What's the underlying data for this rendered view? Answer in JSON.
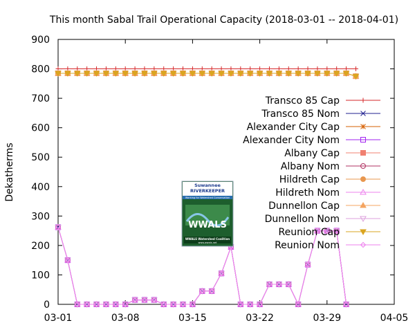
{
  "chart_data": {
    "type": "line",
    "title": "This month Sabal Trail Operational Capacity (2018-03-01 -- 2018-04-01)",
    "xlabel": "",
    "ylabel": "Dekatherms",
    "xlim": [
      "2018-03-01",
      "2018-04-05"
    ],
    "ylim": [
      0,
      900
    ],
    "x_ticks": [
      "03-01",
      "03-08",
      "03-15",
      "03-22",
      "03-29",
      "04-05"
    ],
    "y_ticks": [
      0,
      100,
      200,
      300,
      400,
      500,
      600,
      700,
      800,
      900
    ],
    "grid": false,
    "legend_position": "right",
    "x": [
      "2018-03-01",
      "2018-03-02",
      "2018-03-03",
      "2018-03-04",
      "2018-03-05",
      "2018-03-06",
      "2018-03-07",
      "2018-03-08",
      "2018-03-09",
      "2018-03-10",
      "2018-03-11",
      "2018-03-12",
      "2018-03-13",
      "2018-03-14",
      "2018-03-15",
      "2018-03-16",
      "2018-03-17",
      "2018-03-18",
      "2018-03-19",
      "2018-03-20",
      "2018-03-21",
      "2018-03-22",
      "2018-03-23",
      "2018-03-24",
      "2018-03-25",
      "2018-03-26",
      "2018-03-27",
      "2018-03-28",
      "2018-03-29",
      "2018-03-30",
      "2018-03-31",
      "2018-04-01"
    ],
    "series": [
      {
        "name": "Transco 85 Cap",
        "color": "#d62728",
        "marker": "plus",
        "values": [
          800,
          800,
          800,
          800,
          800,
          800,
          800,
          800,
          800,
          800,
          800,
          800,
          800,
          800,
          800,
          800,
          800,
          800,
          800,
          800,
          800,
          800,
          800,
          800,
          800,
          800,
          800,
          800,
          800,
          800,
          800,
          800
        ]
      },
      {
        "name": "Transco 85 Nom",
        "color": "#1f1f8f",
        "marker": "x",
        "values": [
          262,
          150,
          0,
          0,
          0,
          0,
          0,
          0,
          15,
          15,
          15,
          0,
          0,
          0,
          0,
          45,
          45,
          105,
          195,
          0,
          0,
          0,
          68,
          68,
          68,
          0,
          135,
          250,
          250,
          250,
          0,
          null
        ]
      },
      {
        "name": "Alexander City Cap",
        "color": "#d65f00",
        "marker": "star",
        "values": [
          785,
          785,
          785,
          785,
          785,
          785,
          785,
          785,
          785,
          785,
          785,
          785,
          785,
          785,
          785,
          785,
          785,
          785,
          785,
          785,
          785,
          785,
          785,
          785,
          785,
          785,
          785,
          785,
          785,
          785,
          785,
          775
        ]
      },
      {
        "name": "Alexander City Nom",
        "color": "#a020f0",
        "marker": "square-open",
        "values": [
          262,
          150,
          0,
          0,
          0,
          0,
          0,
          0,
          15,
          15,
          15,
          0,
          0,
          0,
          0,
          45,
          45,
          105,
          195,
          0,
          0,
          0,
          68,
          68,
          68,
          0,
          135,
          250,
          250,
          250,
          0,
          null
        ]
      },
      {
        "name": "Albany Cap",
        "color": "#f08070",
        "marker": "square",
        "values": [
          785,
          785,
          785,
          785,
          785,
          785,
          785,
          785,
          785,
          785,
          785,
          785,
          785,
          785,
          785,
          785,
          785,
          785,
          785,
          785,
          785,
          785,
          785,
          785,
          785,
          785,
          785,
          785,
          785,
          785,
          785,
          775
        ]
      },
      {
        "name": "Albany Nom",
        "color": "#b03060",
        "marker": "circle-open",
        "values": [
          262,
          150,
          0,
          0,
          0,
          0,
          0,
          0,
          15,
          15,
          15,
          0,
          0,
          0,
          0,
          45,
          45,
          105,
          195,
          0,
          0,
          0,
          68,
          68,
          68,
          0,
          135,
          250,
          250,
          250,
          0,
          null
        ]
      },
      {
        "name": "Hildreth Cap",
        "color": "#e8974e",
        "marker": "circle",
        "values": [
          785,
          785,
          785,
          785,
          785,
          785,
          785,
          785,
          785,
          785,
          785,
          785,
          785,
          785,
          785,
          785,
          785,
          785,
          785,
          785,
          785,
          785,
          785,
          785,
          785,
          785,
          785,
          785,
          785,
          785,
          785,
          775
        ]
      },
      {
        "name": "Hildreth Nom",
        "color": "#ee82ee",
        "marker": "triangle-open",
        "values": [
          262,
          150,
          0,
          0,
          0,
          0,
          0,
          0,
          15,
          15,
          15,
          0,
          0,
          0,
          0,
          45,
          45,
          105,
          195,
          0,
          0,
          0,
          68,
          68,
          68,
          0,
          135,
          250,
          250,
          250,
          0,
          null
        ]
      },
      {
        "name": "Dunnellon Cap",
        "color": "#f4a460",
        "marker": "triangle",
        "values": [
          785,
          785,
          785,
          785,
          785,
          785,
          785,
          785,
          785,
          785,
          785,
          785,
          785,
          785,
          785,
          785,
          785,
          785,
          785,
          785,
          785,
          785,
          785,
          785,
          785,
          785,
          785,
          785,
          785,
          785,
          785,
          775
        ]
      },
      {
        "name": "Dunnellon Nom",
        "color": "#dda0dd",
        "marker": "triangle-down-open",
        "values": [
          262,
          150,
          0,
          0,
          0,
          0,
          0,
          0,
          15,
          15,
          15,
          0,
          0,
          0,
          0,
          45,
          45,
          105,
          195,
          0,
          0,
          0,
          68,
          68,
          68,
          0,
          135,
          250,
          250,
          250,
          0,
          null
        ]
      },
      {
        "name": "Reunion Cap",
        "color": "#daa520",
        "marker": "triangle-down",
        "values": [
          785,
          785,
          785,
          785,
          785,
          785,
          785,
          785,
          785,
          785,
          785,
          785,
          785,
          785,
          785,
          785,
          785,
          785,
          785,
          785,
          785,
          785,
          785,
          785,
          785,
          785,
          785,
          785,
          785,
          785,
          785,
          775
        ]
      },
      {
        "name": "Reunion Nom",
        "color": "#ee82ee",
        "marker": "diamond-open",
        "values": [
          262,
          150,
          0,
          0,
          0,
          0,
          0,
          0,
          15,
          15,
          15,
          0,
          0,
          0,
          0,
          45,
          45,
          105,
          195,
          0,
          0,
          0,
          68,
          68,
          68,
          0,
          135,
          250,
          250,
          250,
          0,
          null
        ]
      }
    ]
  },
  "logo": {
    "name": "Suwannee RIVERKEEPER",
    "tagline": "Working for Watershed Conservation",
    "acronym": "WWALS",
    "subtitle": "WWALS Watershed Coalition",
    "url": "www.wwals.net"
  }
}
